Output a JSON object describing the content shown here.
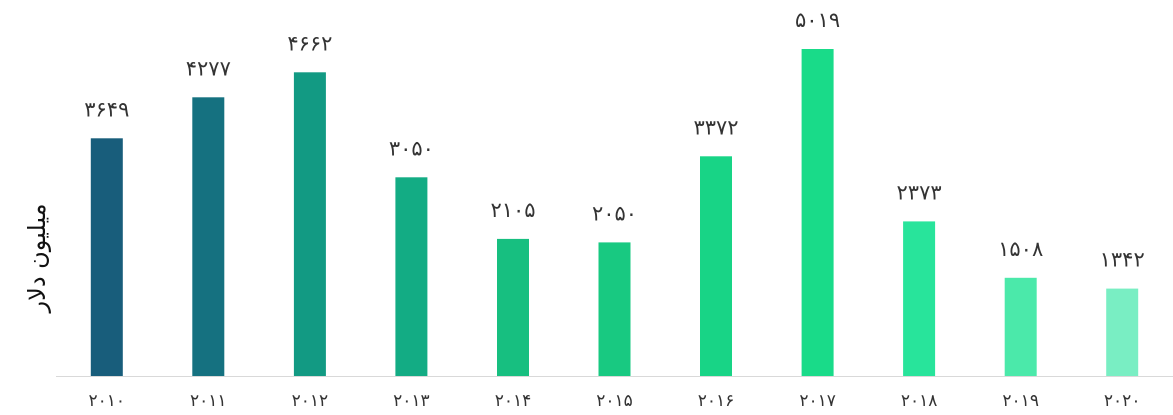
{
  "chart_data": {
    "type": "bar",
    "categories": [
      "۲۰۱۰",
      "۲۰۱۱",
      "۲۰۱۲",
      "۲۰۱۳",
      "۲۰۱۴",
      "۲۰۱۵",
      "۲۰۱۶",
      "۲۰۱۷",
      "۲۰۱۸",
      "۲۰۱۹",
      "۲۰۲۰"
    ],
    "values": [
      3649,
      4277,
      4662,
      3050,
      2105,
      2050,
      3372,
      5019,
      2373,
      1508,
      1342
    ],
    "value_labels": [
      "۳۶۴۹",
      "۴۲۷۷",
      "۴۶۶۲",
      "۳۰۵۰",
      "۲۱۰۵",
      "۲۰۵۰",
      "۳۳۷۲",
      "۵۰۱۹",
      "۲۳۷۳",
      "۱۵۰۸",
      "۱۳۴۲"
    ],
    "ylabel": "میلیون دلار",
    "ylim": [
      0,
      5500
    ],
    "grid": false,
    "bar_colors": [
      "#185D7B",
      "#157180",
      "#129A83",
      "#13AC84",
      "#17BF80",
      "#18C981",
      "#18D486",
      "#19DB89",
      "#28E49B",
      "#4BE9AA",
      "#79EEC3"
    ],
    "axis_color": "#D9D9D9",
    "text_color": "#333333"
  }
}
